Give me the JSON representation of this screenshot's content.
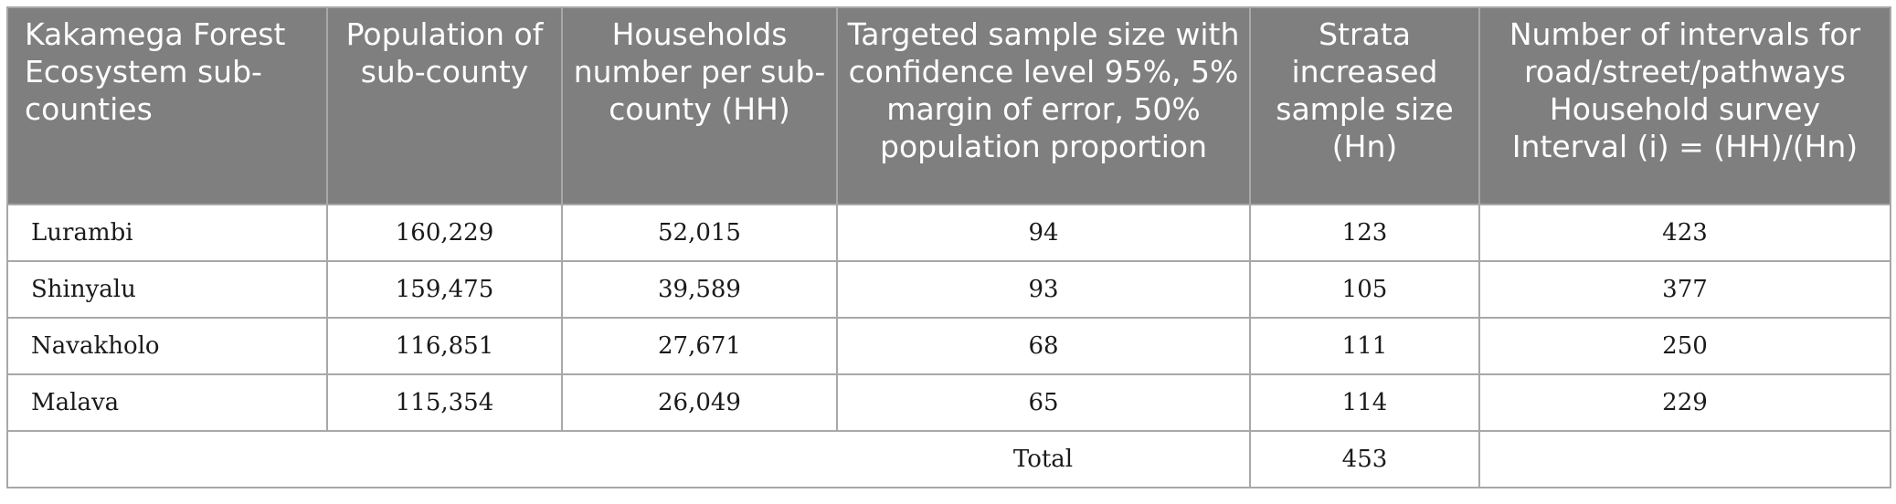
{
  "table": {
    "headers": [
      "Kakamega Forest Ecosystem sub-counties",
      "Population of sub-county",
      "Households number per sub-county (HH)",
      "Targeted sample size with confidence level 95%, 5% margin of error, 50% population proportion",
      "Strata increased sample size (Hn)",
      "Number of intervals for road/street/pathways Household survey Interval (i) = (HH)/(Hn)"
    ],
    "rows": [
      [
        "Lurambi",
        "160,229",
        "52,015",
        "94",
        "123",
        "423"
      ],
      [
        "Shinyalu",
        "159,475",
        "39,589",
        "93",
        "105",
        "377"
      ],
      [
        "Navakholo",
        "116,851",
        "27,671",
        "68",
        "111",
        "250"
      ],
      [
        "Malava",
        "115,354",
        "26,049",
        "65",
        "114",
        "229"
      ]
    ],
    "total": {
      "label": "Total",
      "strata_total": "453"
    }
  }
}
